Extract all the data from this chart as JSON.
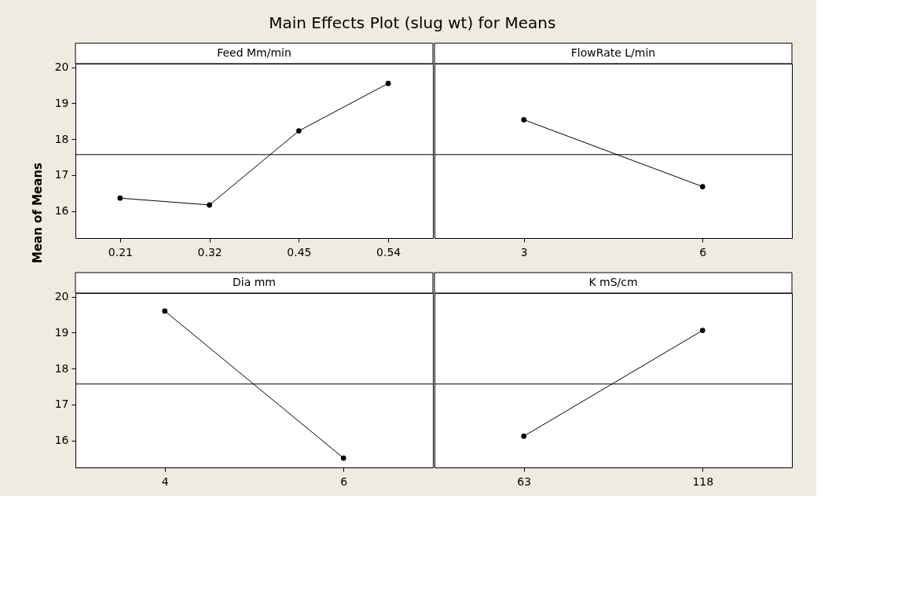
{
  "chart_data": [
    {
      "type": "line",
      "title": "Main Effects Plot (slug wt) for Means",
      "ylabel": "Mean of Means",
      "xlabel": "Feed Mm/min",
      "categories": [
        "0.21",
        "0.32",
        "0.45",
        "0.54"
      ],
      "series": [
        {
          "color": "#000000",
          "values": [
            16.36,
            16.17,
            18.23,
            19.55
          ]
        }
      ],
      "ylim": [
        15.25,
        20.1
      ],
      "yticks": [
        16,
        17,
        18,
        19,
        20
      ],
      "ref_lines": [
        {
          "axis": "y",
          "value": 17.57
        }
      ],
      "marker": "circle",
      "grid": false
    },
    {
      "type": "line",
      "xlabel": "FlowRate L/min",
      "categories": [
        "3",
        "6"
      ],
      "series": [
        {
          "color": "#000000",
          "values": [
            18.54,
            16.68
          ]
        }
      ],
      "ylim": [
        15.25,
        20.1
      ],
      "yticks": [
        16,
        17,
        18,
        19,
        20
      ],
      "ref_lines": [
        {
          "axis": "y",
          "value": 17.57
        }
      ],
      "marker": "circle",
      "grid": false,
      "tick_labels": "x"
    },
    {
      "type": "line",
      "xlabel": "Dia mm",
      "categories": [
        "4",
        "6"
      ],
      "series": [
        {
          "color": "#000000",
          "values": [
            19.6,
            15.51
          ]
        }
      ],
      "ylim": [
        15.25,
        20.1
      ],
      "yticks": [
        16,
        17,
        18,
        19,
        20
      ],
      "ref_lines": [
        {
          "axis": "y",
          "value": 17.57
        }
      ],
      "marker": "circle",
      "grid": false
    },
    {
      "type": "line",
      "xlabel": "K mS/cm",
      "categories": [
        "63",
        "118"
      ],
      "series": [
        {
          "color": "#000000",
          "values": [
            16.12,
            19.06
          ]
        }
      ],
      "ylim": [
        15.25,
        20.1
      ],
      "yticks": [
        16,
        17,
        18,
        19,
        20
      ],
      "ref_lines": [
        {
          "axis": "y",
          "value": 17.57
        }
      ],
      "marker": "circle",
      "grid": false,
      "tick_labels": "x"
    }
  ]
}
